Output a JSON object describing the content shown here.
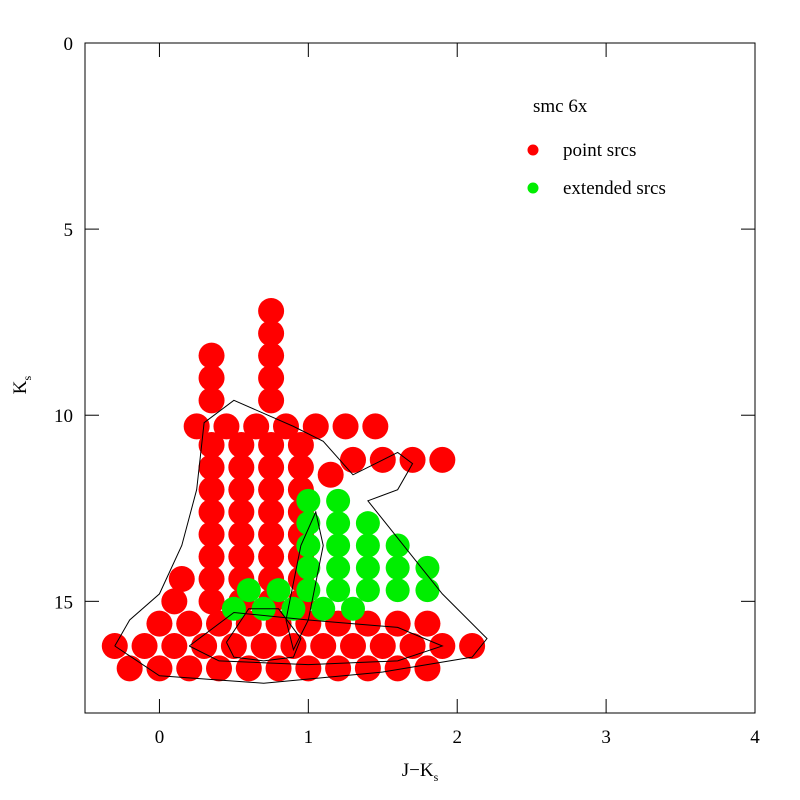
{
  "chart_data": {
    "type": "scatter",
    "xlabel": "J−K",
    "xlabel_sub": "s",
    "ylabel": "K",
    "ylabel_sub": "s",
    "xlim": [
      -0.5,
      4
    ],
    "ylim": [
      18,
      0
    ],
    "y_inverted": true,
    "xticks": [
      0,
      1,
      2,
      3,
      4
    ],
    "yticks": [
      0,
      5,
      10,
      15
    ],
    "legend": {
      "title": "smc 6x",
      "corner": "upper right"
    },
    "series": [
      {
        "name": "point srcs",
        "color": "#ff0000",
        "marker_size": 13,
        "x": [
          -0.2,
          0,
          0.2,
          0.4,
          0.6,
          0.8,
          1,
          1.2,
          1.4,
          1.6,
          1.8,
          -0.3,
          -0.1,
          0.1,
          0.3,
          0.5,
          0.7,
          0.9,
          1.1,
          1.3,
          1.5,
          1.7,
          1.9,
          2.1,
          0,
          0.2,
          0.4,
          0.6,
          0.8,
          1,
          1.2,
          1.4,
          1.6,
          1.8,
          0.35,
          0.55,
          0.75,
          0.95,
          0.35,
          0.55,
          0.75,
          0.95,
          0.35,
          0.55,
          0.75,
          0.95,
          0.35,
          0.55,
          0.75,
          0.95,
          0.35,
          0.55,
          0.75,
          0.95,
          0.35,
          0.55,
          0.75,
          0.95,
          0.35,
          0.55,
          0.75,
          0.95,
          0.35,
          0.55,
          0.75,
          0.95,
          0.15,
          0.1,
          0.25,
          0.45,
          0.65,
          0.85,
          1.05,
          1.25,
          1.45,
          0.75,
          0.75,
          0.75,
          0.75,
          0.75,
          0.35,
          0.35,
          0.35,
          1.3,
          1.5,
          1.7,
          1.9,
          1.15
        ],
        "y": [
          16.8,
          16.8,
          16.8,
          16.8,
          16.8,
          16.8,
          16.8,
          16.8,
          16.8,
          16.8,
          16.8,
          16.2,
          16.2,
          16.2,
          16.2,
          16.2,
          16.2,
          16.2,
          16.2,
          16.2,
          16.2,
          16.2,
          16.2,
          16.2,
          15.6,
          15.6,
          15.6,
          15.6,
          15.6,
          15.6,
          15.6,
          15.6,
          15.6,
          15.6,
          15,
          15,
          15,
          15,
          14.4,
          14.4,
          14.4,
          14.4,
          13.8,
          13.8,
          13.8,
          13.8,
          13.2,
          13.2,
          13.2,
          13.2,
          12.6,
          12.6,
          12.6,
          12.6,
          12,
          12,
          12,
          12,
          11.4,
          11.4,
          11.4,
          11.4,
          10.8,
          10.8,
          10.8,
          10.8,
          14.4,
          15,
          10.3,
          10.3,
          10.3,
          10.3,
          10.3,
          10.3,
          10.3,
          9.6,
          9,
          8.4,
          7.8,
          7.2,
          9.6,
          9,
          8.4,
          11.2,
          11.2,
          11.2,
          11.2,
          11.6
        ]
      },
      {
        "name": "extended srcs",
        "color": "#00ee00",
        "marker_size": 12,
        "x": [
          1,
          1.2,
          1,
          1.2,
          1.4,
          1,
          1.2,
          1.4,
          1.6,
          1,
          1.2,
          1.4,
          1.6,
          1.8,
          0.6,
          0.8,
          1,
          1.2,
          1.4,
          1.6,
          1.8,
          0.5,
          0.7,
          0.9,
          1.1,
          1.3
        ],
        "y": [
          12.3,
          12.3,
          12.9,
          12.9,
          12.9,
          13.5,
          13.5,
          13.5,
          13.5,
          14.1,
          14.1,
          14.1,
          14.1,
          14.1,
          14.7,
          14.7,
          14.7,
          14.7,
          14.7,
          14.7,
          14.7,
          15.2,
          15.2,
          15.2,
          15.2,
          15.2
        ]
      }
    ],
    "contours": [
      {
        "x": [
          -0.3,
          -0.2,
          0,
          0.15,
          0.25,
          0.3,
          0.5,
          0.9,
          1.1,
          1.3,
          1.6,
          1.7,
          1.6,
          1.4,
          1.9,
          2.2,
          2.1,
          1.5,
          0.7,
          0,
          -0.3
        ],
        "y": [
          16.2,
          15.5,
          14.8,
          13.5,
          12,
          10.2,
          9.6,
          10.3,
          10.7,
          11.6,
          11,
          11.3,
          12,
          12.3,
          14.8,
          16,
          16.5,
          16.9,
          17.2,
          17,
          16.2
        ]
      },
      {
        "x": [
          0.2,
          0.5,
          1,
          1.6,
          1.9,
          1.6,
          1,
          0.4,
          0.2
        ],
        "y": [
          16.2,
          15.3,
          15.5,
          15.7,
          16.2,
          16.6,
          16.7,
          16.6,
          16.2
        ]
      },
      {
        "x": [
          0.45,
          0.6,
          0.8,
          0.95,
          0.9,
          0.7,
          0.5,
          0.45
        ],
        "y": [
          16.1,
          15.2,
          15.2,
          16,
          16.5,
          16.6,
          16.5,
          16.1
        ]
      },
      {
        "x": [
          0.85,
          0.95,
          1.05,
          1.1,
          1,
          0.9,
          0.85
        ],
        "y": [
          15.5,
          13.5,
          12.6,
          13.5,
          15.5,
          16.3,
          15.5
        ]
      }
    ]
  }
}
